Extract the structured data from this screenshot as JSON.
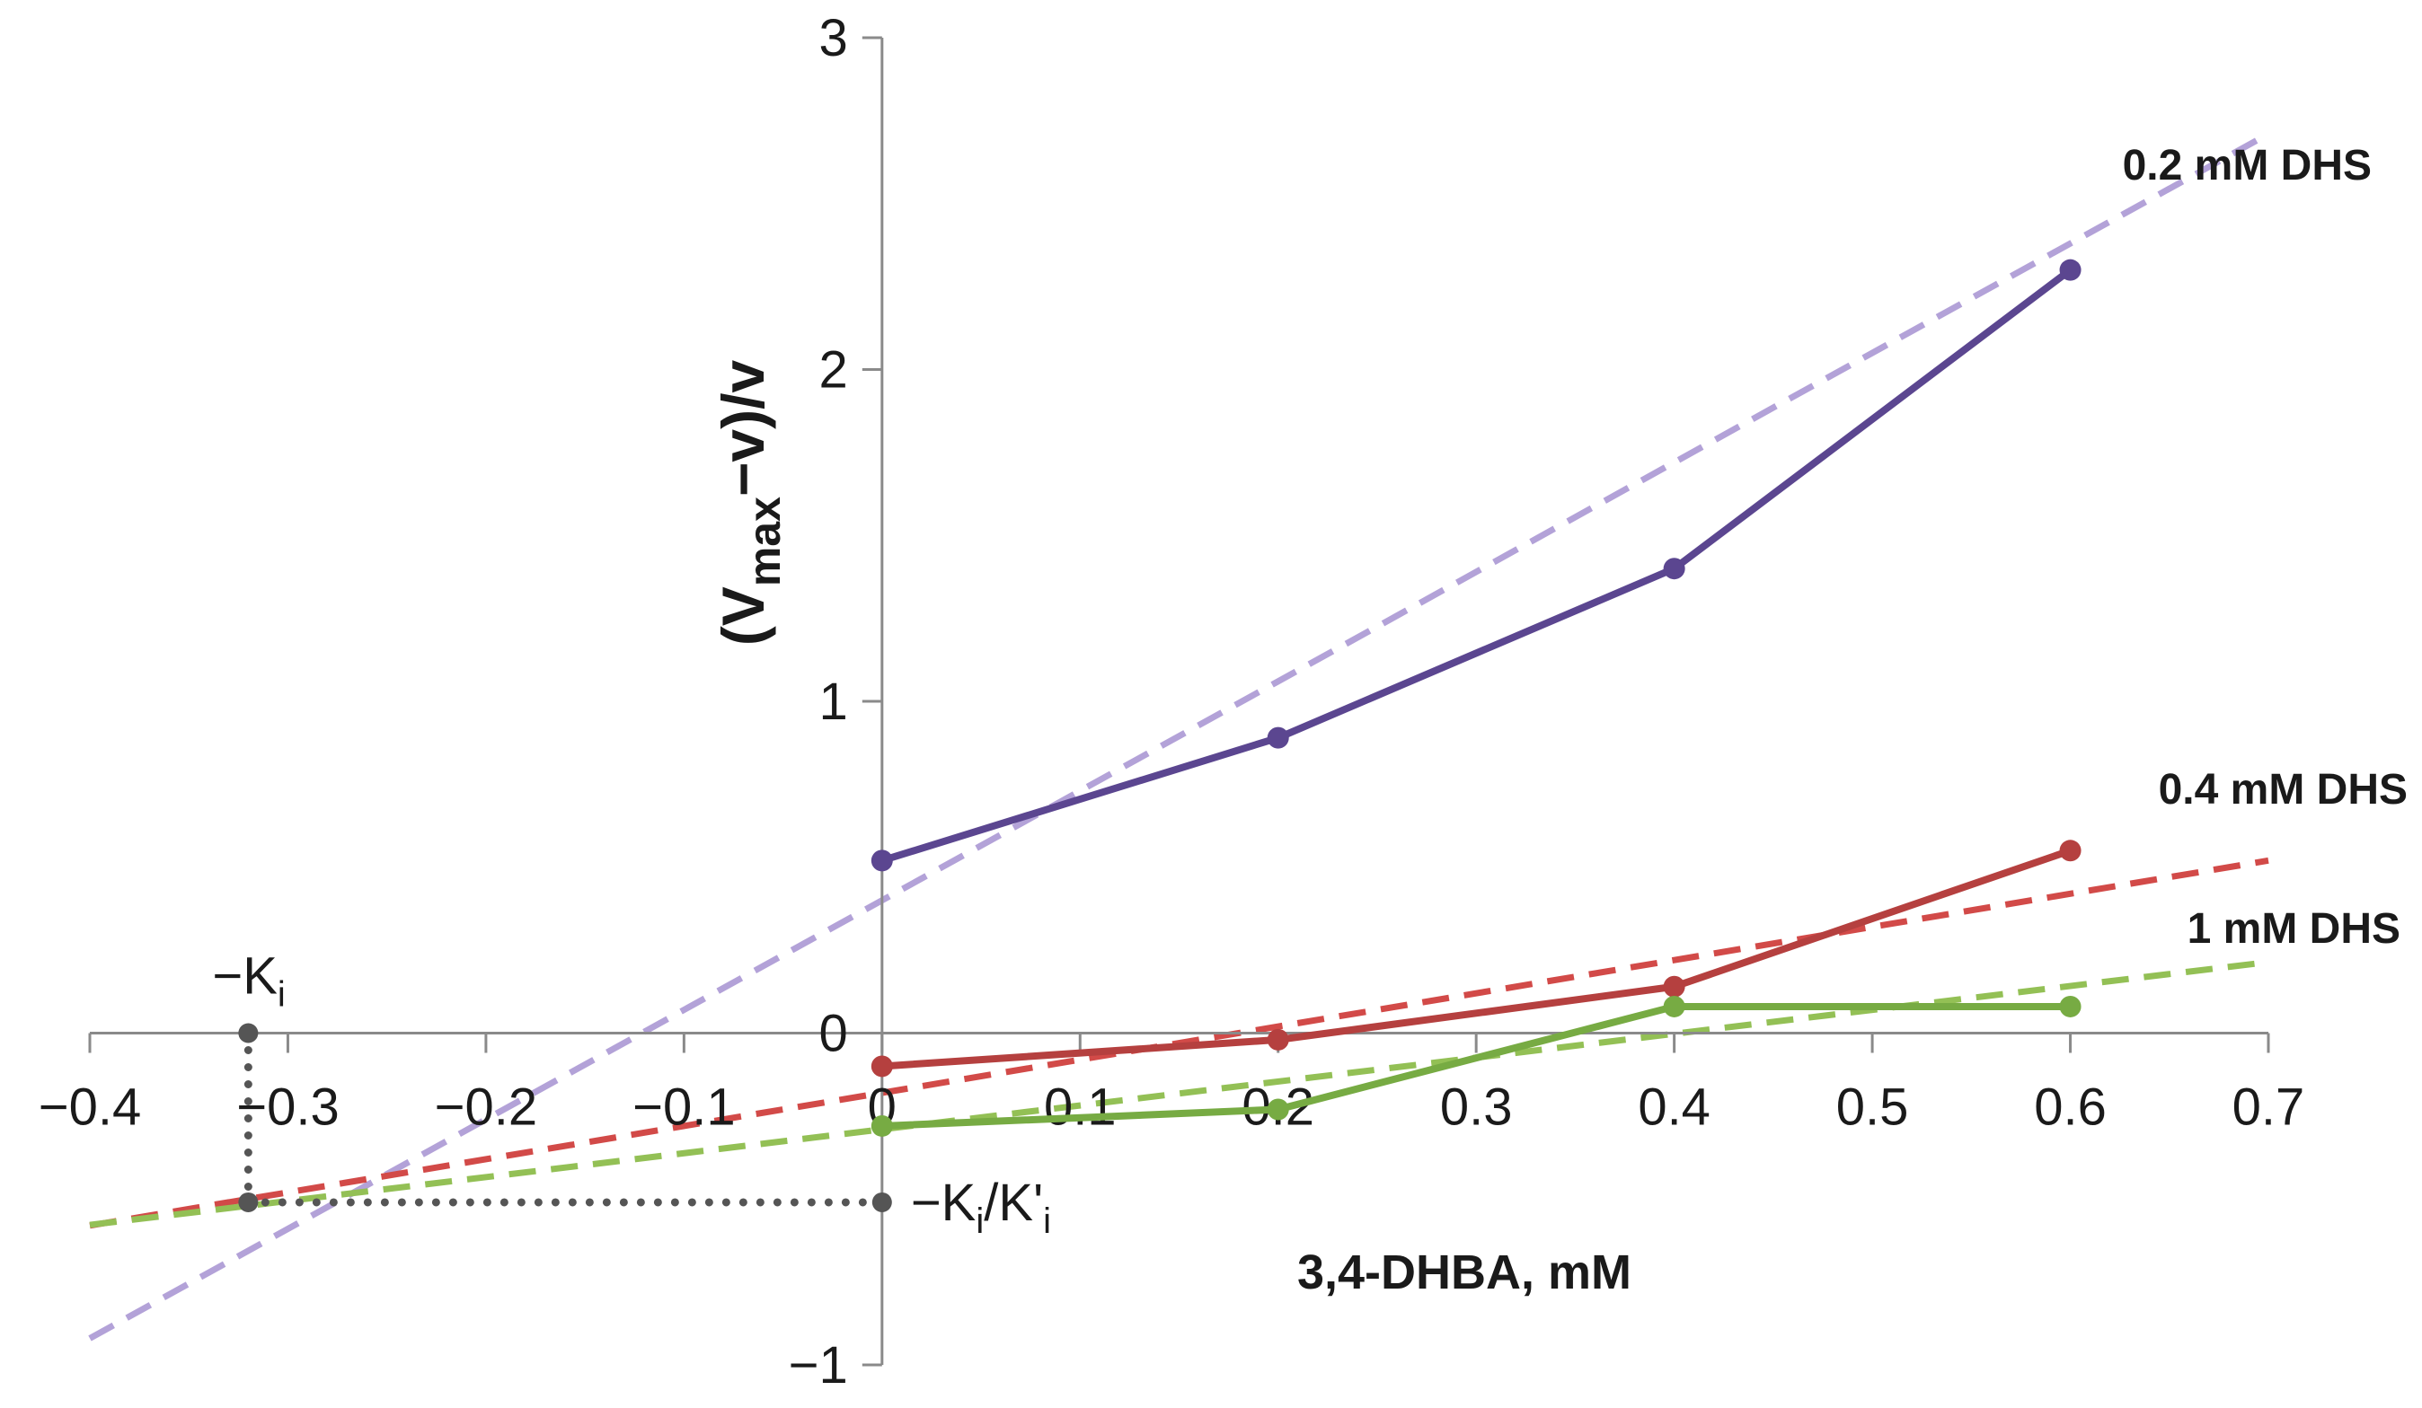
{
  "chart_data": {
    "type": "line",
    "title": "",
    "xlabel": "3,4-DHBA, mM",
    "ylabel": {
      "open": "(V",
      "sub": "max",
      "close": "−v)/v"
    },
    "xlim": [
      -0.4,
      0.7
    ],
    "ylim": [
      -1,
      3
    ],
    "xticks": [
      -0.4,
      -0.3,
      -0.2,
      -0.1,
      0,
      0.1,
      0.2,
      0.3,
      0.4,
      0.5,
      0.6,
      0.7
    ],
    "xtick_labels": [
      "−0.4",
      "−0.3",
      "−0.2",
      "−0.1",
      "0",
      "0.1",
      "0.2",
      "0.3",
      "0.4",
      "0.5",
      "0.6",
      "0.7"
    ],
    "yticks": [
      -1,
      0,
      1,
      2,
      3
    ],
    "ytick_labels": [
      "−1",
      "0",
      "1",
      "2",
      "3"
    ],
    "grid": false,
    "series": [
      {
        "name": "0.2 mM DHS",
        "color": "#5b4690",
        "trend_color": "#b3a2d8",
        "x": [
          0,
          0.2,
          0.4,
          0.6
        ],
        "y": [
          0.52,
          0.89,
          1.4,
          2.3
        ],
        "trend": {
          "slope": 3.3,
          "intercept": 0.4,
          "x_start": -0.4,
          "x_end": 0.7
        }
      },
      {
        "name": "0.4 mM DHS",
        "color": "#b5403f",
        "trend_color": "#d24a48",
        "x": [
          0,
          0.2,
          0.4,
          0.6
        ],
        "y": [
          -0.1,
          -0.02,
          0.14,
          0.55
        ],
        "trend": {
          "slope": 1.0,
          "intercept": -0.18,
          "x_start": -0.4,
          "x_end": 0.7
        }
      },
      {
        "name": "1 mM DHS",
        "color": "#77ab43",
        "trend_color": "#93c055",
        "x": [
          0,
          0.2,
          0.4,
          0.6
        ],
        "y": [
          -0.28,
          -0.23,
          0.08,
          0.08
        ],
        "trend": {
          "slope": 0.72,
          "intercept": -0.29,
          "x_start": -0.4,
          "x_end": 0.7
        }
      }
    ],
    "annotations": {
      "ki": {
        "main": "−K",
        "sub": "i",
        "x": -0.32,
        "y": 0
      },
      "ki_ratio": {
        "main": "−K",
        "sub1": "i",
        "mid": "/K'",
        "sub2": "i",
        "x": 0,
        "y": -0.51
      },
      "intersection": {
        "x": -0.32,
        "y": -0.51
      },
      "guide_color": "#555555"
    }
  }
}
